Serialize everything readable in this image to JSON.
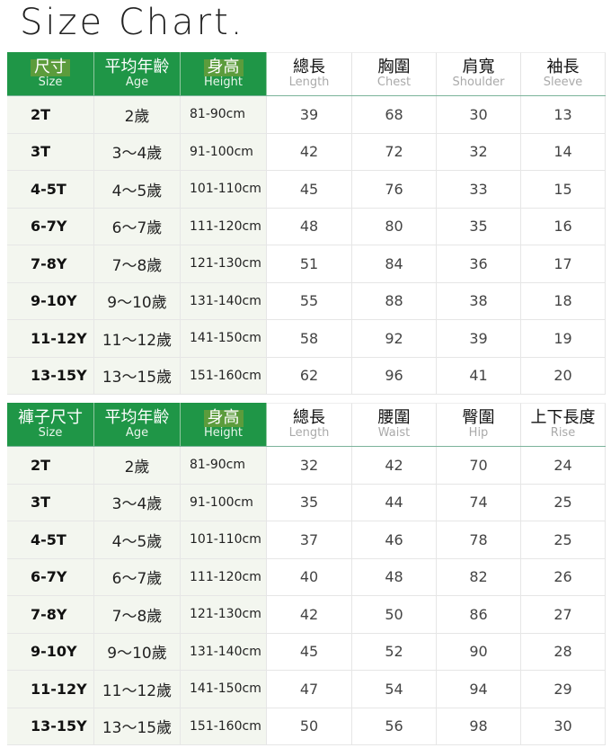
{
  "title": "Size Chart.",
  "colors": {
    "header_green": "#1f9647",
    "label_bg": "#f3f6ef"
  },
  "tables": [
    {
      "headers": [
        {
          "zh": "尺寸",
          "en": "Size"
        },
        {
          "zh": "平均年齡",
          "en": "Age"
        },
        {
          "zh": "身高",
          "en": "Height"
        },
        {
          "zh": "總長",
          "en": "Length"
        },
        {
          "zh": "胸圍",
          "en": "Chest"
        },
        {
          "zh": "肩寬",
          "en": "Shoulder"
        },
        {
          "zh": "袖長",
          "en": "Sleeve"
        }
      ],
      "rows": [
        [
          "2T",
          "2歲",
          "81-90cm",
          "39",
          "68",
          "30",
          "13"
        ],
        [
          "3T",
          "3～4歲",
          "91-100cm",
          "42",
          "72",
          "32",
          "14"
        ],
        [
          "4-5T",
          "4～5歲",
          "101-110cm",
          "45",
          "76",
          "33",
          "15"
        ],
        [
          "6-7Y",
          "6～7歲",
          "111-120cm",
          "48",
          "80",
          "35",
          "16"
        ],
        [
          "7-8Y",
          "7～8歲",
          "121-130cm",
          "51",
          "84",
          "36",
          "17"
        ],
        [
          "9-10Y",
          "9～10歲",
          "131-140cm",
          "55",
          "88",
          "38",
          "18"
        ],
        [
          "11-12Y",
          "11～12歲",
          "141-150cm",
          "58",
          "92",
          "39",
          "19"
        ],
        [
          "13-15Y",
          "13～15歲",
          "151-160cm",
          "62",
          "96",
          "41",
          "20"
        ]
      ]
    },
    {
      "headers": [
        {
          "zh": "褲子尺寸",
          "en": "Size"
        },
        {
          "zh": "平均年齡",
          "en": "Age"
        },
        {
          "zh": "身高",
          "en": "Height"
        },
        {
          "zh": "總長",
          "en": "Length"
        },
        {
          "zh": "腰圍",
          "en": "Waist"
        },
        {
          "zh": "臀圍",
          "en": "Hip"
        },
        {
          "zh": "上下長度",
          "en": "Rise"
        }
      ],
      "rows": [
        [
          "2T",
          "2歲",
          "81-90cm",
          "32",
          "42",
          "70",
          "24"
        ],
        [
          "3T",
          "3～4歲",
          "91-100cm",
          "35",
          "44",
          "74",
          "25"
        ],
        [
          "4-5T",
          "4～5歲",
          "101-110cm",
          "37",
          "46",
          "78",
          "25"
        ],
        [
          "6-7Y",
          "6～7歲",
          "111-120cm",
          "40",
          "48",
          "82",
          "26"
        ],
        [
          "7-8Y",
          "7～8歲",
          "121-130cm",
          "42",
          "50",
          "86",
          "27"
        ],
        [
          "9-10Y",
          "9～10歲",
          "131-140cm",
          "45",
          "52",
          "90",
          "28"
        ],
        [
          "11-12Y",
          "11～12歲",
          "141-150cm",
          "47",
          "54",
          "94",
          "29"
        ],
        [
          "13-15Y",
          "13～15歲",
          "151-160cm",
          "50",
          "56",
          "98",
          "30"
        ]
      ]
    }
  ]
}
